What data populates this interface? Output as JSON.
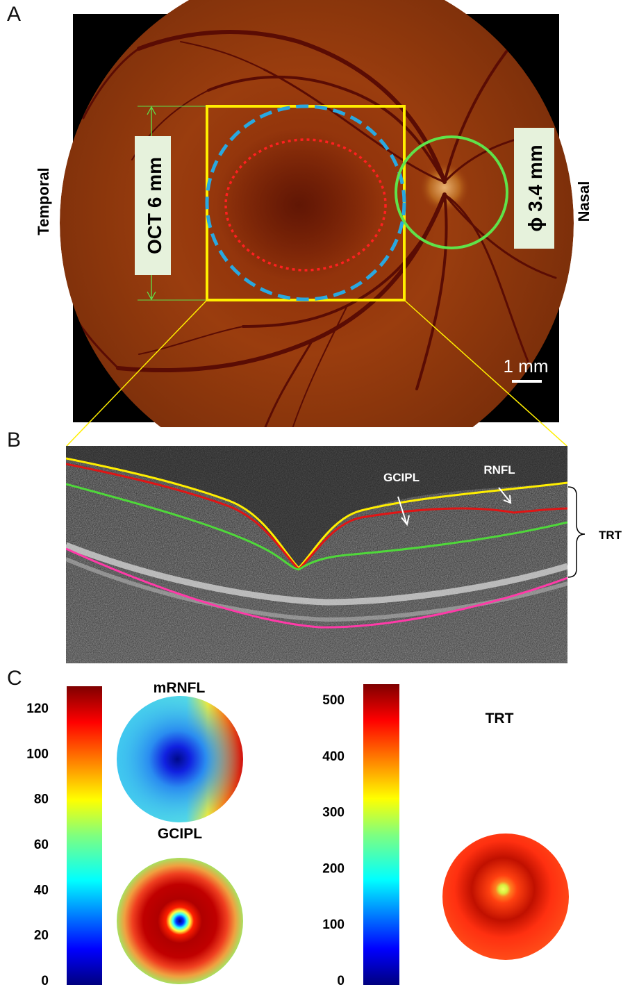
{
  "panel_a": {
    "letter": "A",
    "temporal_label": "Temporal",
    "nasal_label": "Nasal",
    "oct_label": "OCT 6 mm",
    "disc_label": "ϕ 3.4 mm",
    "scale_label": "1 mm"
  },
  "panel_b": {
    "letter": "B",
    "gcipl_label": "GCIPL",
    "rnfl_label": "RNFL",
    "trt_label": "TRT"
  },
  "panel_c": {
    "letter": "C",
    "left_scale": {
      "ticks": [
        "0",
        "20",
        "40",
        "60",
        "80",
        "100",
        "120"
      ]
    },
    "right_scale": {
      "ticks": [
        "0",
        "100",
        "200",
        "300",
        "400",
        "500"
      ]
    },
    "maps": {
      "mrnfl": "mRNFL",
      "gcipl": "GCIPL",
      "trt": "TRT"
    }
  },
  "colors": {
    "scan_square": "#ffee00",
    "dashed_circle": "#29a8e0",
    "dotted_ellipse": "#ff2020",
    "disc_circle": "#5fe34a",
    "layer_ilm": "#ffee00",
    "layer_rnfl": "#e01515",
    "layer_gcipl": "#4fd83a",
    "layer_rpe": "#ff3aa8"
  }
}
